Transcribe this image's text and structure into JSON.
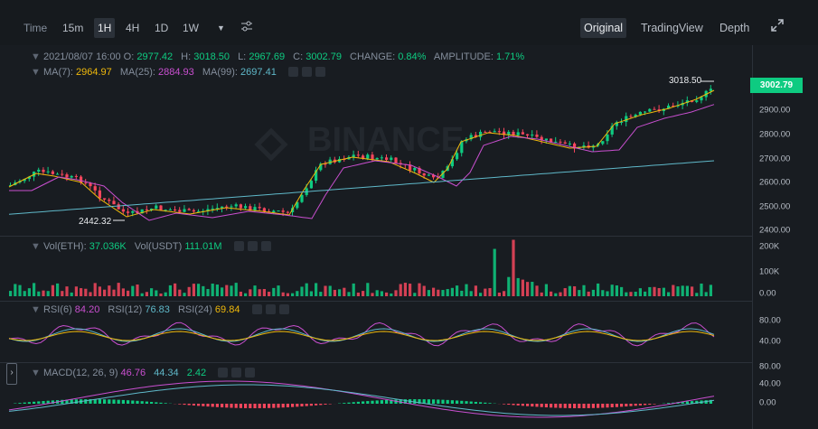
{
  "toolbar": {
    "time_label": "Time",
    "intervals": [
      "15m",
      "1H",
      "4H",
      "1D",
      "1W"
    ],
    "active_interval": "1H",
    "more_icon": "caret-down-icon",
    "settings_icon": "sliders-icon",
    "views": [
      "Original",
      "TradingView",
      "Depth"
    ],
    "active_view": "Original",
    "fullscreen_icon": "expand-icon"
  },
  "ohlc": {
    "date": "2021/08/07 16:00",
    "o_label": "O:",
    "o": "2977.42",
    "h_label": "H:",
    "h": "3018.50",
    "l_label": "L:",
    "l": "2967.69",
    "c_label": "C:",
    "c": "3002.79",
    "change_label": "CHANGE:",
    "change": "0.84%",
    "amp_label": "AMPLITUDE:",
    "amp": "1.71%"
  },
  "ma": {
    "ma7_label": "MA(7):",
    "ma7": "2964.97",
    "ma25_label": "MA(25):",
    "ma25": "2884.93",
    "ma99_label": "MA(99):",
    "ma99": "2697.41"
  },
  "watermark": "BINANCE",
  "price_axis": [
    "2900.00",
    "2800.00",
    "2700.00",
    "2600.00",
    "2500.00",
    "2400.00"
  ],
  "last_price": "3002.79",
  "high_marker": "3018.50",
  "low_marker": "2442.32",
  "volume": {
    "eth_label": "Vol(ETH):",
    "eth": "37.036K",
    "usdt_label": "Vol(USDT)",
    "usdt": "111.01M",
    "axis": [
      "200K",
      "100K",
      "0.00"
    ]
  },
  "rsi": {
    "rsi6_label": "RSI(6)",
    "rsi6": "84.20",
    "rsi12_label": "RSI(12)",
    "rsi12": "76.83",
    "rsi24_label": "RSI(24)",
    "rsi24": "69.84",
    "axis": [
      "80.00",
      "40.00"
    ]
  },
  "macd": {
    "label": "MACD(12, 26, 9)",
    "dif": "46.76",
    "dea": "44.34",
    "hist": "2.42",
    "axis": [
      "80.00",
      "40.00",
      "0.00"
    ]
  },
  "colors": {
    "up": "#0ecb81",
    "down": "#f6465d",
    "ma7": "#f0b90b",
    "ma25": "#c94fd0",
    "ma99": "#5fb8c9"
  }
}
